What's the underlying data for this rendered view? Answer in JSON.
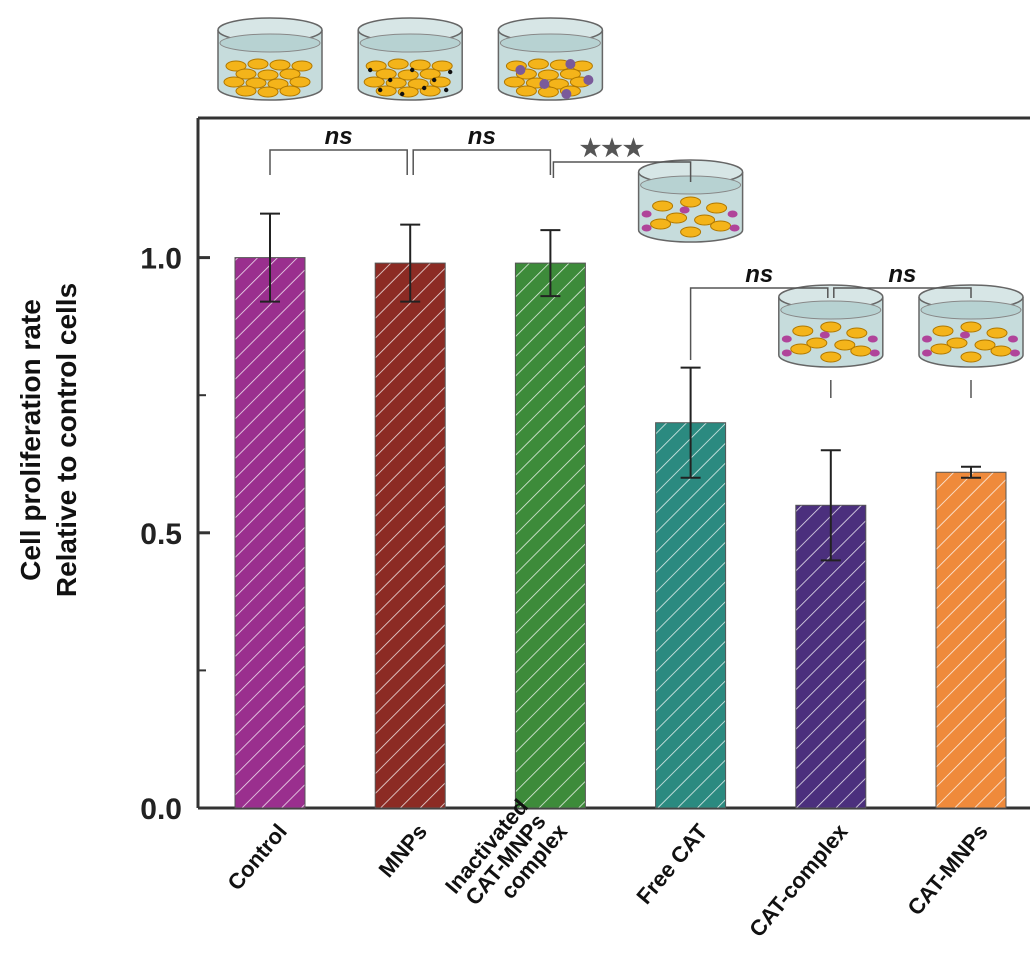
{
  "chart_data": {
    "type": "bar",
    "ylabel": [
      "Cell proliferation rate",
      "Relative to control cells"
    ],
    "categories": [
      "Control",
      "MNPs",
      "Inactivated\nCAT-MNPs\ncomplex",
      "Free CAT",
      "CAT-complex",
      "CAT-MNPs"
    ],
    "values": [
      1.0,
      0.99,
      0.99,
      0.7,
      0.55,
      0.61
    ],
    "errors": [
      0.08,
      0.07,
      0.06,
      0.1,
      0.1,
      0.01
    ],
    "colors": [
      "#9a2f8e",
      "#8c2b24",
      "#3d8b3a",
      "#2b8a80",
      "#4b2f7d",
      "#ef8a3b"
    ],
    "hatch": true,
    "ylim": [
      0,
      1.25
    ],
    "yticks": [
      {
        "value": 0,
        "label": "0.0"
      },
      0.5,
      {
        "value": 1,
        "label": "1.0"
      }
    ],
    "minor_yticks": [
      0.25,
      0.75
    ],
    "annotations": [
      "ns",
      "ns",
      "★★★",
      "ns",
      "ns"
    ]
  }
}
